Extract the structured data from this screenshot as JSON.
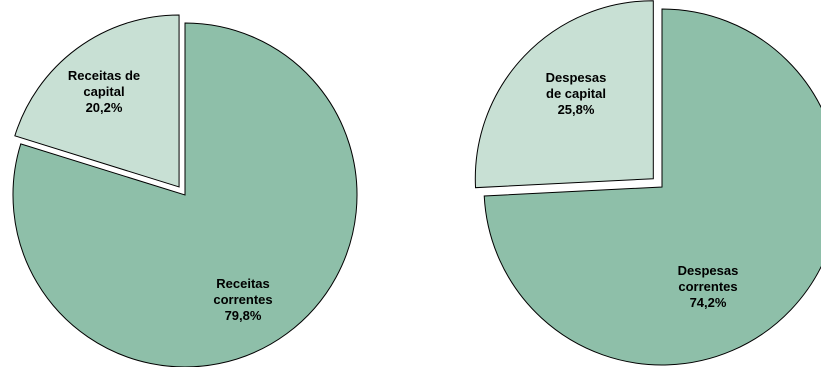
{
  "chart_data": [
    {
      "type": "pie",
      "slices": [
        {
          "label_lines": [
            "Receitas de",
            "capital",
            "20,2%"
          ],
          "value": 20.2,
          "color": "#c8e0d4",
          "exploded": true
        },
        {
          "label_lines": [
            "Receitas",
            "correntes",
            "79,8%"
          ],
          "value": 79.8,
          "color": "#8ebfa9",
          "exploded": false
        }
      ]
    },
    {
      "type": "pie",
      "slices": [
        {
          "label_lines": [
            "Despesas",
            "de capital",
            "25,8%"
          ],
          "value": 25.8,
          "color": "#c8e0d4",
          "exploded": true
        },
        {
          "label_lines": [
            "Despesas",
            "correntes",
            "74,2%"
          ],
          "value": 74.2,
          "color": "#8ebfa9",
          "exploded": false
        }
      ]
    }
  ],
  "style": {
    "stroke_color": "#000000",
    "background": "#ffffff"
  }
}
